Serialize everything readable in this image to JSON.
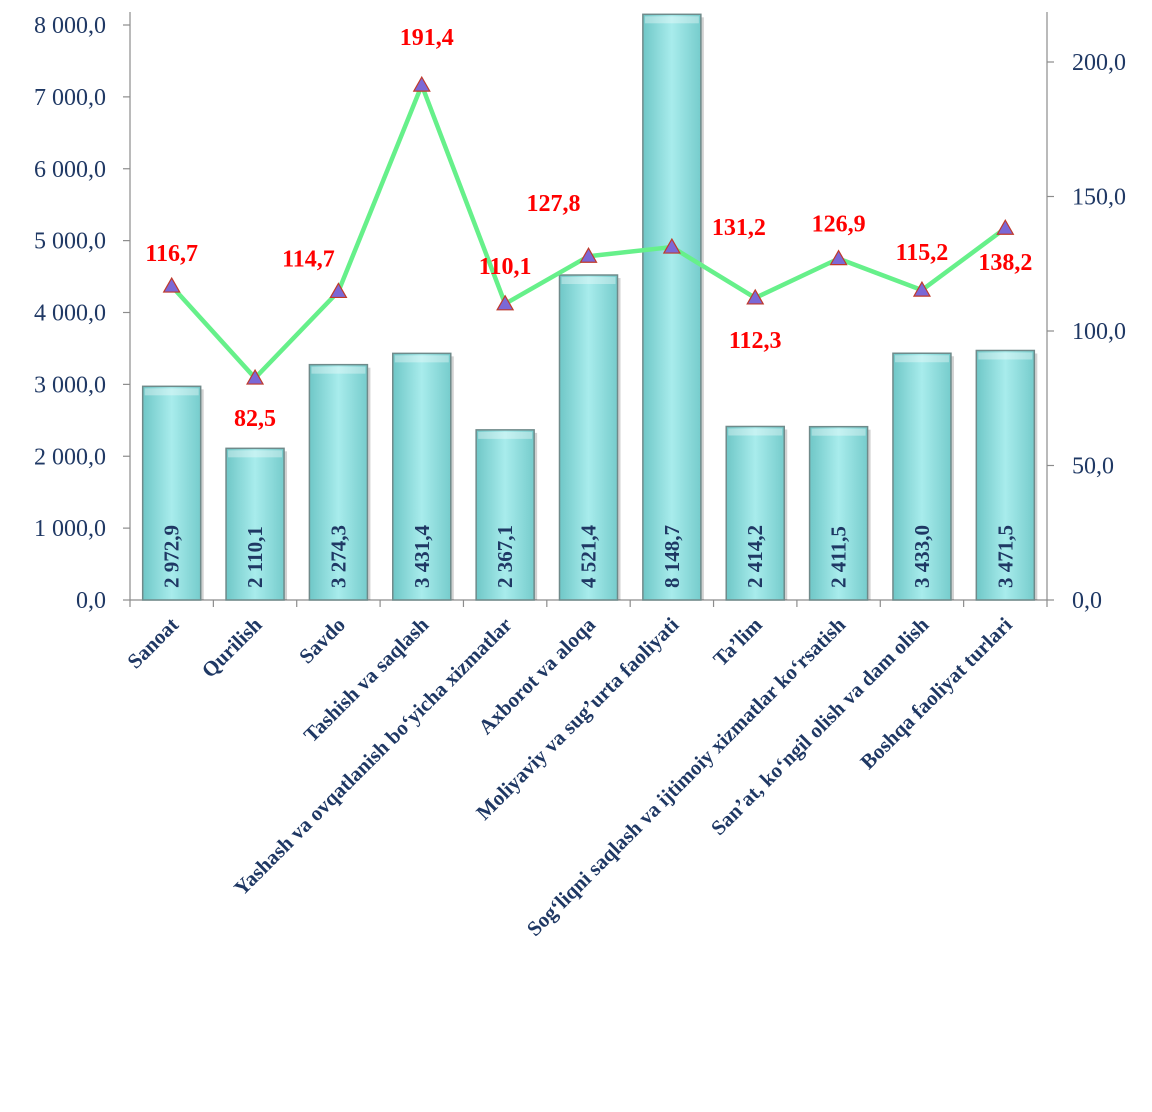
{
  "chart_data": {
    "type": "bar",
    "categories": [
      "Sanoat",
      "Qurilish",
      "Savdo",
      "Tashish va saqlash",
      "Yashash va ovqatlanish bo‘yicha xizmatlar",
      "Axborot va aloqa",
      "Moliyaviy va sug’urta faoliyati",
      "Ta’lim",
      "Sog‘liqni saqlash va ijtimoiy xizmatlar ko‘rsatish",
      "San’at, ko‘ngil olish va dam olish",
      "Boshqa faoliyat turlari"
    ],
    "series": [
      {
        "axis": "left",
        "values": [
          2972.9,
          2110.1,
          3274.3,
          3431.4,
          2367.1,
          4521.4,
          8148.7,
          2414.2,
          2411.5,
          3433.0,
          3471.5
        ],
        "labels": [
          "2 972,9",
          "2 110,1",
          "3 274,3",
          "3 431,4",
          "2 367,1",
          "4 521,4",
          "8 148,7",
          "2 414,2",
          "2 411,5",
          "3 433,0",
          "3 471,5"
        ]
      },
      {
        "axis": "right",
        "type": "line",
        "values": [
          116.7,
          82.5,
          114.7,
          191.4,
          110.1,
          127.8,
          131.2,
          112.3,
          126.9,
          115.2,
          138.2
        ],
        "labels": [
          "116,7",
          "82,5",
          "114,7",
          "191,4",
          "110,1",
          "127,8",
          "131,2",
          "112,3",
          "126,9",
          "115,2",
          "138,2"
        ]
      }
    ],
    "ylim_left": [
      0,
      8000
    ],
    "ylim_right": [
      0,
      200
    ],
    "yticks_left": [
      "0,0",
      "1 000,0",
      "2 000,0",
      "3 000,0",
      "4 000,0",
      "5 000,0",
      "6 000,0",
      "7 000,0",
      "8 000,0"
    ],
    "yticks_right": [
      "0,0",
      "50,0",
      "100,0",
      "150,0",
      "200,0"
    ],
    "colors": {
      "bar_fill": "#9ee0e0",
      "bar_stroke": "#6f8a8a",
      "line": "#66f08a",
      "marker": "#7b68d6",
      "marker_stroke": "#c0392b",
      "point_label": "#ff0000",
      "text": "#1f3864"
    },
    "grid": false,
    "legend": "none"
  }
}
